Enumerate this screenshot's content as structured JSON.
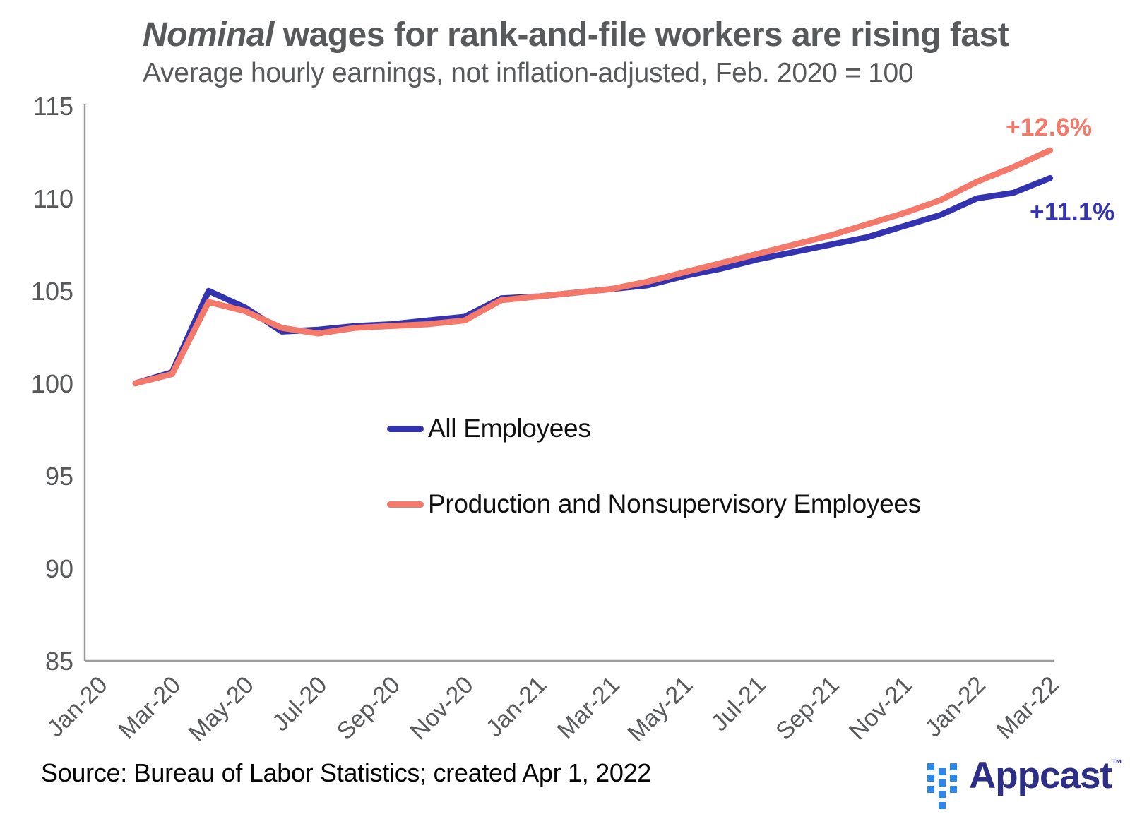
{
  "header": {
    "title_italic": "Nominal",
    "title_rest": " wages for rank-and-file workers are rising fast",
    "subtitle": "Average hourly earnings, not inflation-adjusted, Feb. 2020 = 100"
  },
  "footer": {
    "source_note": "Source: Bureau of Labor Statistics; created Apr 1, 2022",
    "logo_text": "Appcast",
    "logo_tm": "™"
  },
  "colors": {
    "all_employees_blue": "#3333B2",
    "production_salmon": "#F5796B",
    "title_gray": "#58595B",
    "tick_gray": "#58595B",
    "axis_gray": "#9B9B9D",
    "legend_text": "#111111",
    "logo_dot_blue": "#2B87F0",
    "logo_text_indigo": "#2D2E87"
  },
  "chart_data": {
    "type": "line",
    "title": "Nominal wages for rank-and-file workers are rising fast",
    "subtitle": "Average hourly earnings, not inflation-adjusted, Feb. 2020 = 100",
    "xlabel": "",
    "ylabel": "",
    "ylim": [
      85,
      115
    ],
    "yticks": [
      85,
      90,
      95,
      100,
      105,
      110,
      115
    ],
    "grid": false,
    "legend_position": "center",
    "x_tick_labels": [
      "Jan-20",
      "Mar-20",
      "May-20",
      "Jul-20",
      "Sep-20",
      "Nov-20",
      "Jan-21",
      "Mar-21",
      "May-21",
      "Jul-21",
      "Sep-21",
      "Nov-21",
      "Jan-22",
      "Mar-22"
    ],
    "categories": [
      "Feb-20",
      "Mar-20",
      "Apr-20",
      "May-20",
      "Jun-20",
      "Jul-20",
      "Aug-20",
      "Sep-20",
      "Oct-20",
      "Nov-20",
      "Dec-20",
      "Jan-21",
      "Feb-21",
      "Mar-21",
      "Apr-21",
      "May-21",
      "Jun-21",
      "Jul-21",
      "Aug-21",
      "Sep-21",
      "Oct-21",
      "Nov-21",
      "Dec-21",
      "Jan-22",
      "Feb-22",
      "Mar-22"
    ],
    "series": [
      {
        "name": "All Employees",
        "color": "#3333B2",
        "end_label": "+11.1%",
        "values": [
          100.0,
          100.6,
          105.0,
          104.1,
          102.8,
          102.9,
          103.1,
          103.2,
          103.4,
          103.6,
          104.6,
          104.7,
          104.9,
          105.1,
          105.3,
          105.8,
          106.2,
          106.7,
          107.1,
          107.5,
          107.9,
          108.5,
          109.1,
          110.0,
          110.3,
          111.1
        ]
      },
      {
        "name": "Production and Nonsupervisory Employees",
        "color": "#F5796B",
        "end_label": "+12.6%",
        "values": [
          100.0,
          100.5,
          104.4,
          103.9,
          103.0,
          102.7,
          103.0,
          103.1,
          103.2,
          103.4,
          104.5,
          104.7,
          104.9,
          105.1,
          105.5,
          106.0,
          106.5,
          107.0,
          107.5,
          108.0,
          108.6,
          109.2,
          109.9,
          110.9,
          111.7,
          112.6
        ]
      }
    ]
  }
}
